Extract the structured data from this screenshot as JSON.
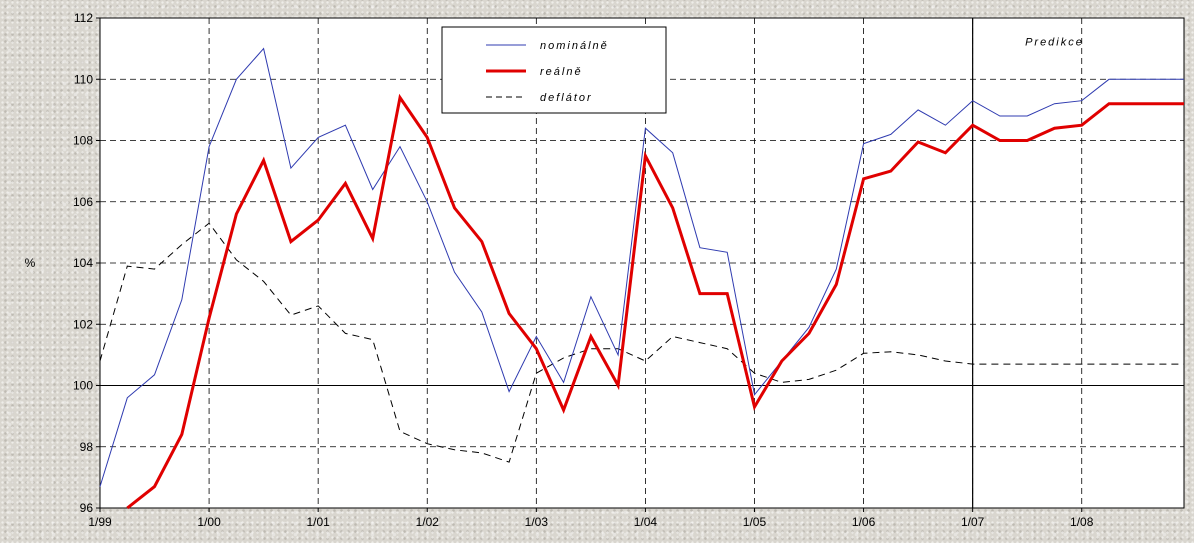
{
  "chart_data": {
    "type": "line",
    "ylabel": "%",
    "ylim": [
      96,
      112
    ],
    "yticks": [
      96,
      98,
      100,
      102,
      104,
      106,
      108,
      110,
      112
    ],
    "xlim": [
      0,
      39.75
    ],
    "xticks": [
      {
        "x": 0,
        "label": "1/99"
      },
      {
        "x": 4,
        "label": "1/00"
      },
      {
        "x": 8,
        "label": "1/01"
      },
      {
        "x": 12,
        "label": "1/02"
      },
      {
        "x": 16,
        "label": "1/03"
      },
      {
        "x": 20,
        "label": "1/04"
      },
      {
        "x": 24,
        "label": "1/05"
      },
      {
        "x": 28,
        "label": "1/06"
      },
      {
        "x": 32,
        "label": "1/07"
      },
      {
        "x": 36,
        "label": "1/08"
      }
    ],
    "grid": true,
    "baseline": 100,
    "forecast_start": 32,
    "annotation": "Predikce",
    "legend_position": "top-center",
    "series": [
      {
        "name": "nominálně",
        "color": "#2f3bb0",
        "dash": "solid",
        "width": 1,
        "values": [
          [
            0,
            96.7
          ],
          [
            1,
            99.6
          ],
          [
            2,
            100.35
          ],
          [
            3,
            102.8
          ],
          [
            4,
            107.8
          ],
          [
            5,
            110
          ],
          [
            6,
            111
          ],
          [
            7,
            107.1
          ],
          [
            8,
            108.1
          ],
          [
            9,
            108.5
          ],
          [
            10,
            106.4
          ],
          [
            11,
            107.8
          ],
          [
            12,
            106
          ],
          [
            13,
            103.7
          ],
          [
            14,
            102.4
          ],
          [
            15,
            99.8
          ],
          [
            16,
            101.6
          ],
          [
            17,
            100.1
          ],
          [
            18,
            102.9
          ],
          [
            19,
            101
          ],
          [
            20,
            108.4
          ],
          [
            21,
            107.6
          ],
          [
            22,
            104.5
          ],
          [
            23,
            104.35
          ],
          [
            24,
            99.7
          ],
          [
            25,
            100.8
          ],
          [
            26,
            101.9
          ],
          [
            27,
            103.8
          ],
          [
            28,
            107.9
          ],
          [
            29,
            108.2
          ],
          [
            30,
            109
          ],
          [
            31,
            108.5
          ],
          [
            32,
            109.3
          ],
          [
            33,
            108.8
          ],
          [
            34,
            108.8
          ],
          [
            35,
            109.2
          ],
          [
            36,
            109.3
          ],
          [
            37,
            110
          ],
          [
            38,
            110
          ],
          [
            39,
            110
          ],
          [
            39.75,
            110
          ]
        ]
      },
      {
        "name": "reálně",
        "color": "#e00000",
        "dash": "solid",
        "width": 3,
        "values": [
          [
            1,
            96
          ],
          [
            2,
            96.7
          ],
          [
            3,
            98.4
          ],
          [
            4,
            102.2
          ],
          [
            5,
            105.6
          ],
          [
            6,
            107.35
          ],
          [
            7,
            104.7
          ],
          [
            8,
            105.4
          ],
          [
            9,
            106.6
          ],
          [
            10,
            104.8
          ],
          [
            11,
            109.4
          ],
          [
            12,
            108.1
          ],
          [
            13,
            105.8
          ],
          [
            14,
            104.7
          ],
          [
            15,
            102.35
          ],
          [
            16,
            101.2
          ],
          [
            17,
            99.2
          ],
          [
            18,
            101.6
          ],
          [
            19,
            100
          ],
          [
            20,
            107.5
          ],
          [
            21,
            105.8
          ],
          [
            22,
            103
          ],
          [
            23,
            103
          ],
          [
            24,
            99.3
          ],
          [
            25,
            100.8
          ],
          [
            26,
            101.7
          ],
          [
            27,
            103.3
          ],
          [
            28,
            106.75
          ],
          [
            29,
            107
          ],
          [
            30,
            107.95
          ],
          [
            31,
            107.6
          ],
          [
            32,
            108.5
          ],
          [
            33,
            108
          ],
          [
            34,
            108
          ],
          [
            35,
            108.4
          ],
          [
            36,
            108.5
          ],
          [
            37,
            109.2
          ],
          [
            38,
            109.2
          ],
          [
            39,
            109.2
          ],
          [
            39.75,
            109.2
          ]
        ]
      },
      {
        "name": "deflátor",
        "color": "#000000",
        "dash": "dashed",
        "width": 1,
        "values": [
          [
            0,
            100.8
          ],
          [
            1,
            103.9
          ],
          [
            2,
            103.8
          ],
          [
            3,
            104.6
          ],
          [
            4,
            105.3
          ],
          [
            5,
            104.1
          ],
          [
            6,
            103.4
          ],
          [
            7,
            102.3
          ],
          [
            8,
            102.6
          ],
          [
            9,
            101.7
          ],
          [
            10,
            101.5
          ],
          [
            11,
            98.5
          ],
          [
            12,
            98.1
          ],
          [
            13,
            97.9
          ],
          [
            14,
            97.8
          ],
          [
            15,
            97.5
          ],
          [
            16,
            100.4
          ],
          [
            17,
            100.9
          ],
          [
            18,
            101.2
          ],
          [
            19,
            101.2
          ],
          [
            20,
            100.8
          ],
          [
            21,
            101.6
          ],
          [
            22,
            101.4
          ],
          [
            23,
            101.2
          ],
          [
            24,
            100.4
          ],
          [
            25,
            100.1
          ],
          [
            26,
            100.2
          ],
          [
            27,
            100.5
          ],
          [
            28,
            101.05
          ],
          [
            29,
            101.1
          ],
          [
            30,
            101
          ],
          [
            31,
            100.8
          ],
          [
            32,
            100.7
          ],
          [
            33,
            100.7
          ],
          [
            34,
            100.7
          ],
          [
            35,
            100.7
          ],
          [
            36,
            100.7
          ],
          [
            37,
            100.7
          ],
          [
            38,
            100.7
          ],
          [
            39,
            100.7
          ],
          [
            39.75,
            100.7
          ]
        ]
      }
    ]
  }
}
